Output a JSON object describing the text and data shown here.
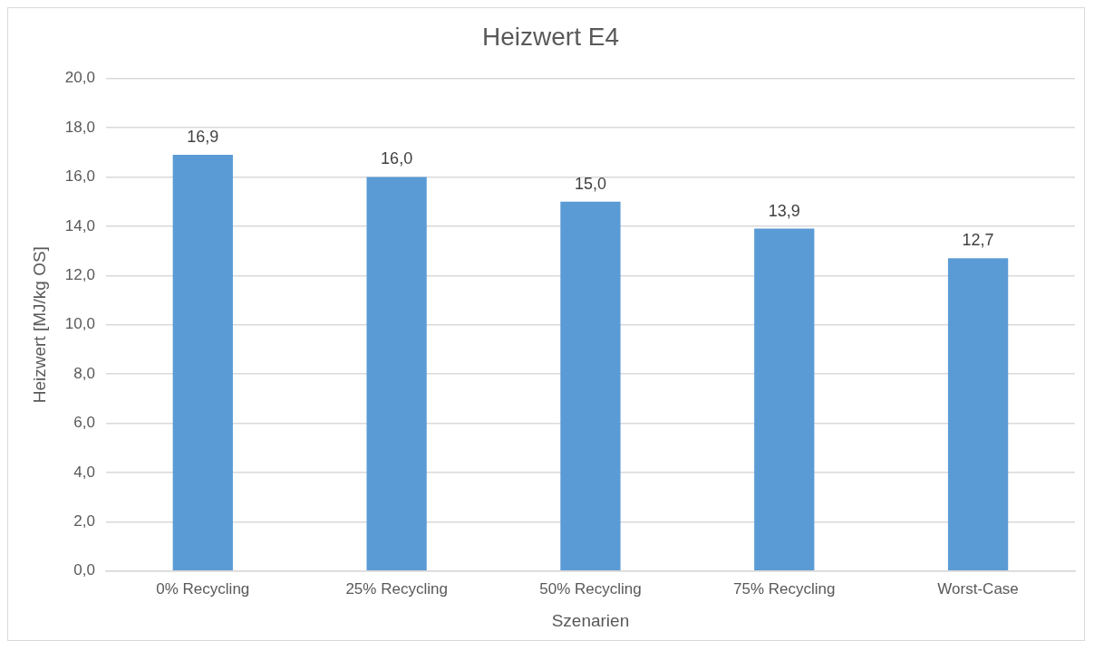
{
  "chart_data": {
    "type": "bar",
    "title": "Heizwert E4",
    "xlabel": "Szenarien",
    "ylabel": "Heizwert [MJ/kg OS]",
    "categories": [
      "0% Recycling",
      "25% Recycling",
      "50% Recycling",
      "75% Recycling",
      "Worst-Case"
    ],
    "values": [
      16.9,
      16.0,
      15.0,
      13.9,
      12.7
    ],
    "color": "#5b9bd5",
    "value_labels": [
      "16,9",
      "16,0",
      "15,0",
      "13,9",
      "12,7"
    ],
    "ylim": [
      0,
      20
    ],
    "yticks": [
      {
        "value": 0,
        "label": "0,0"
      },
      {
        "value": 2,
        "label": "2,0"
      },
      {
        "value": 4,
        "label": "4,0"
      },
      {
        "value": 6,
        "label": "6,0"
      },
      {
        "value": 8,
        "label": "8,0"
      },
      {
        "value": 10,
        "label": "10,0"
      },
      {
        "value": 12,
        "label": "12,0"
      },
      {
        "value": 14,
        "label": "14,0"
      },
      {
        "value": 16,
        "label": "16,0"
      },
      {
        "value": 18,
        "label": "18,0"
      },
      {
        "value": 20,
        "label": "20,0"
      }
    ],
    "grid": "y"
  }
}
